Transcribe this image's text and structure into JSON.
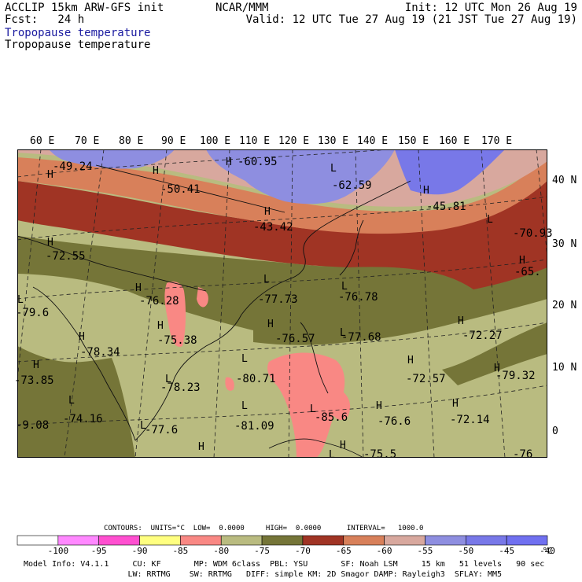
{
  "header": {
    "line1_left": "ACCLIP 15km ARW-GFS init",
    "line2_left": "Fcst:   24 h",
    "center": "NCAR/MMM",
    "line1_right": "Init: 12 UTC Mon 26 Aug 19",
    "line2_right": "Valid: 12 UTC Tue 27 Aug 19 (21 JST Tue 27 Aug 19)",
    "field_title_blue": "Tropopause temperature",
    "field_title_black": "Tropopause temperature"
  },
  "map": {
    "lon_labels": [
      "60 E",
      "70 E",
      "80 E",
      "90 E",
      "100 E",
      "110 E",
      "120 E",
      "130 E",
      "140 E",
      "150 E",
      "160 E",
      "170 E"
    ],
    "lat_labels": [
      "40 N",
      "30 N",
      "20 N",
      "10 N",
      "0"
    ],
    "colors": {
      "c_50_45": "#8e8ee0",
      "c_45_40": "#7878e8",
      "c_55_50": "#d8a89e",
      "c_60_55": "#d8805a",
      "c_65_60": "#a03424",
      "c_70_65": "#757538",
      "c_75_70": "#b9bb80",
      "c_85_80": "#f98884"
    },
    "annotations": [
      {
        "kind": "H",
        "text": "H"
      },
      {
        "kind": "value",
        "text": "-49.24"
      },
      {
        "kind": "H",
        "text": "H"
      },
      {
        "kind": "value",
        "text": "-50.41"
      },
      {
        "kind": "H",
        "text": "H"
      },
      {
        "kind": "value",
        "text": "-60.95"
      },
      {
        "kind": "L",
        "text": "L"
      },
      {
        "kind": "value",
        "text": "-62.59"
      },
      {
        "kind": "H",
        "text": "H"
      },
      {
        "kind": "value",
        "text": "-45.81"
      },
      {
        "kind": "H",
        "text": "H"
      },
      {
        "kind": "value",
        "text": "-43.42"
      },
      {
        "kind": "L",
        "text": "L"
      },
      {
        "kind": "value",
        "text": "-70.93"
      },
      {
        "kind": "H",
        "text": "H"
      },
      {
        "kind": "value",
        "text": "-65."
      },
      {
        "kind": "H",
        "text": "H"
      },
      {
        "kind": "value",
        "text": "-72.55"
      },
      {
        "kind": "H",
        "text": "H"
      },
      {
        "kind": "value",
        "text": "-76.28"
      },
      {
        "kind": "L",
        "text": "L"
      },
      {
        "kind": "value",
        "text": "-77.73"
      },
      {
        "kind": "L",
        "text": "L"
      },
      {
        "kind": "value",
        "text": "-76.78"
      },
      {
        "kind": "L",
        "text": "L"
      },
      {
        "kind": "value",
        "text": "-79.6"
      },
      {
        "kind": "H",
        "text": "H"
      },
      {
        "kind": "value",
        "text": "-75.38"
      },
      {
        "kind": "H",
        "text": "H"
      },
      {
        "kind": "value",
        "text": "-76.57"
      },
      {
        "kind": "L",
        "text": "L"
      },
      {
        "kind": "value",
        "text": "-77.68"
      },
      {
        "kind": "H",
        "text": "H"
      },
      {
        "kind": "value",
        "text": "-72.27"
      },
      {
        "kind": "H",
        "text": "H"
      },
      {
        "kind": "value",
        "text": "-78.34"
      },
      {
        "kind": "L",
        "text": "L"
      },
      {
        "kind": "value",
        "text": "-80.71"
      },
      {
        "kind": "H",
        "text": "H"
      },
      {
        "kind": "value",
        "text": "-72.57"
      },
      {
        "kind": "H",
        "text": "H"
      },
      {
        "kind": "value",
        "text": "-79.32"
      },
      {
        "kind": "H",
        "text": "H"
      },
      {
        "kind": "value",
        "text": "-73.85"
      },
      {
        "kind": "L",
        "text": "L"
      },
      {
        "kind": "value",
        "text": "-78.23"
      },
      {
        "kind": "L",
        "text": "L"
      },
      {
        "kind": "value",
        "text": "-74.16"
      },
      {
        "kind": "L",
        "text": "L"
      },
      {
        "kind": "value",
        "text": "-81.09"
      },
      {
        "kind": "L",
        "text": "L"
      },
      {
        "kind": "value",
        "text": "-85.6"
      },
      {
        "kind": "H",
        "text": "H"
      },
      {
        "kind": "value",
        "text": "-76.6"
      },
      {
        "kind": "H",
        "text": "H"
      },
      {
        "kind": "value",
        "text": "-72.14"
      },
      {
        "kind": "L",
        "text": "L"
      },
      {
        "kind": "value",
        "text": "-77.6"
      },
      {
        "kind": "value",
        "text": "-9.08"
      },
      {
        "kind": "H",
        "text": "H"
      },
      {
        "kind": "H",
        "text": "H"
      },
      {
        "kind": "L",
        "text": "L"
      },
      {
        "kind": "value",
        "text": "-75.5"
      },
      {
        "kind": "value",
        "text": "-76"
      }
    ]
  },
  "colorbar": {
    "title": "CONTOURS:  UNITS=°C  LOW=  0.0000     HIGH=  0.0000      INTERVAL=   1000.0",
    "unit": "°C",
    "labels": [
      "-100",
      "-95",
      "-90",
      "-85",
      "-80",
      "-75",
      "-70",
      "-65",
      "-60",
      "-55",
      "-50",
      "-45",
      "-40"
    ],
    "colors": [
      "#ffffff",
      "#ff88ff",
      "#ff4fd0",
      "#ffff80",
      "#f98884",
      "#b9bb80",
      "#757538",
      "#a03424",
      "#d8805a",
      "#d8a89e",
      "#8e8ee0",
      "#7878e8",
      "#7070f0"
    ]
  },
  "footer": {
    "line1": "Model Info: V4.1.1     CU: KF       MP: WDM 6class  PBL: YSU       SF: Noah LSM     15 km   51 levels   90 sec",
    "line2": "                      LW: RRTMG    SW: RRTMG   DIFF: simple KM: 2D Smagor DAMP: Rayleigh3  SFLAY: MM5"
  }
}
